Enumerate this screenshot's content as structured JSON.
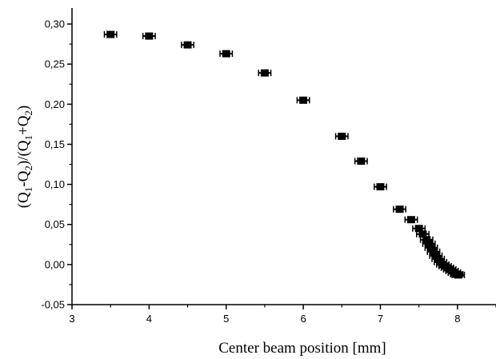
{
  "chart_data": {
    "type": "scatter",
    "xlabel": "Center beam position [mm]",
    "ylabel": {
      "parts": [
        "(Q",
        "1",
        "-Q",
        "2",
        ")/(Q",
        "1",
        "+Q",
        "2",
        ")"
      ]
    },
    "xlim": [
      3,
      8.5
    ],
    "ylim": [
      -0.05,
      0.32
    ],
    "x_ticks": [
      3,
      4,
      5,
      6,
      7,
      8
    ],
    "x_tick_labels": [
      "3",
      "4",
      "5",
      "6",
      "7",
      "8"
    ],
    "y_ticks": [
      -0.05,
      0,
      0.05,
      0.1,
      0.15,
      0.2,
      0.25,
      0.3
    ],
    "y_tick_labels": [
      "-0,05",
      "0,00",
      "0,05",
      "0,10",
      "0,15",
      "0,20",
      "0,25",
      "0,30"
    ],
    "error_bar_x": 0.08,
    "points": [
      {
        "x": 3.5,
        "y": 0.287
      },
      {
        "x": 4.0,
        "y": 0.285
      },
      {
        "x": 4.5,
        "y": 0.274
      },
      {
        "x": 5.0,
        "y": 0.263
      },
      {
        "x": 5.5,
        "y": 0.239
      },
      {
        "x": 6.0,
        "y": 0.205
      },
      {
        "x": 6.5,
        "y": 0.16
      },
      {
        "x": 6.75,
        "y": 0.129
      },
      {
        "x": 7.0,
        "y": 0.097
      },
      {
        "x": 7.25,
        "y": 0.069
      },
      {
        "x": 7.4,
        "y": 0.056
      },
      {
        "x": 7.5,
        "y": 0.045
      },
      {
        "x": 7.55,
        "y": 0.038
      },
      {
        "x": 7.6,
        "y": 0.031
      },
      {
        "x": 7.63,
        "y": 0.026
      },
      {
        "x": 7.66,
        "y": 0.021
      },
      {
        "x": 7.69,
        "y": 0.016
      },
      {
        "x": 7.72,
        "y": 0.011
      },
      {
        "x": 7.75,
        "y": 0.007
      },
      {
        "x": 7.78,
        "y": 0.003
      },
      {
        "x": 7.81,
        "y": 0.0
      },
      {
        "x": 7.84,
        "y": -0.002
      },
      {
        "x": 7.87,
        "y": -0.004
      },
      {
        "x": 7.9,
        "y": -0.006
      },
      {
        "x": 7.93,
        "y": -0.008
      },
      {
        "x": 7.96,
        "y": -0.01
      },
      {
        "x": 7.99,
        "y": -0.012
      },
      {
        "x": 8.01,
        "y": -0.013
      }
    ]
  }
}
